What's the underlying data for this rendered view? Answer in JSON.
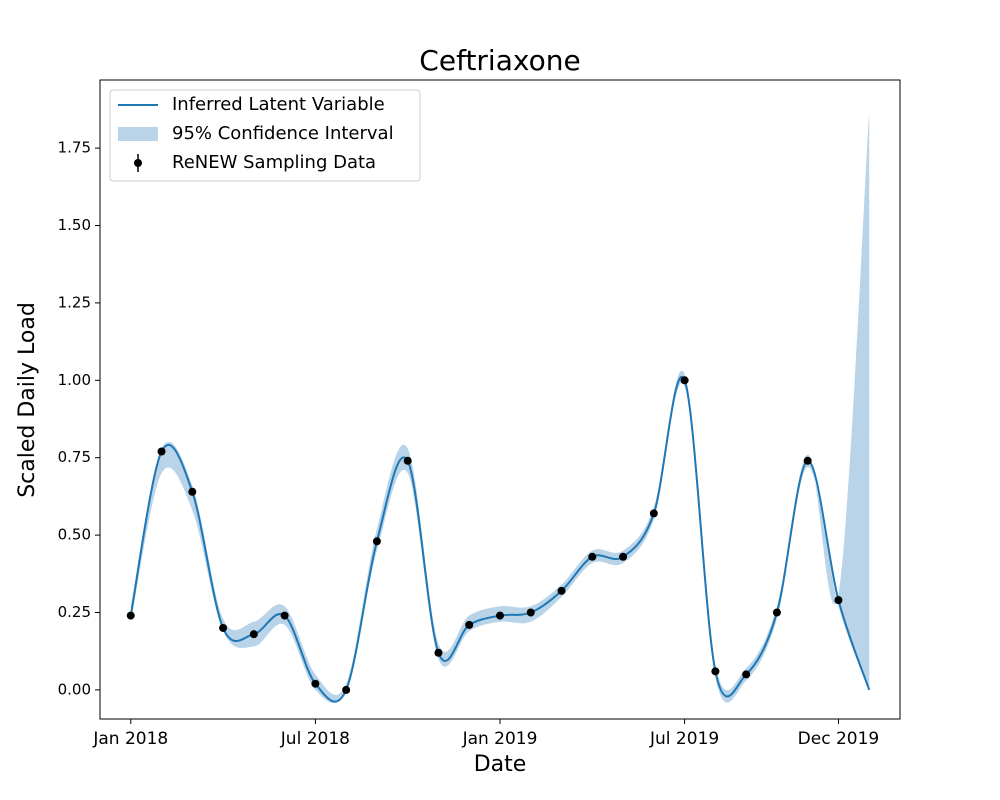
{
  "chart_data": {
    "type": "line",
    "title": "Ceftriaxone",
    "x_label": "Date",
    "y_label": "Scaled Daily Load",
    "xlim": [
      "2017-12",
      "2020-02"
    ],
    "xticks": [
      {
        "value": "2018-01",
        "label": "Jan 2018"
      },
      {
        "value": "2018-07",
        "label": "Jul 2018"
      },
      {
        "value": "2019-01",
        "label": "Jan 2019"
      },
      {
        "value": "2019-07",
        "label": "Jul 2019"
      },
      {
        "value": "2019-12",
        "label": "Dec 2019"
      }
    ],
    "ylim": [
      -0.094,
      1.97
    ],
    "yticks": [
      {
        "value": 0,
        "label": "0.00"
      },
      {
        "value": 0.25,
        "label": "0.25"
      },
      {
        "value": 0.5,
        "label": "0.50"
      },
      {
        "value": 0.75,
        "label": "0.75"
      },
      {
        "value": 1,
        "label": "1.00"
      },
      {
        "value": 1.25,
        "label": "1.25"
      },
      {
        "value": 1.5,
        "label": "1.50"
      },
      {
        "value": 1.75,
        "label": "1.75"
      }
    ],
    "legend": "upper left",
    "series": [
      {
        "name": "Inferred Latent Variable",
        "color": "#1f77b4",
        "x": [
          "2018-01",
          "2018-02",
          "2018-03",
          "2018-04",
          "2018-05",
          "2018-06",
          "2018-07",
          "2018-08",
          "2018-09",
          "2018-10",
          "2018-11",
          "2018-12",
          "2019-01",
          "2019-02",
          "2019-03",
          "2019-04",
          "2019-05",
          "2019-06",
          "2019-07",
          "2019-08",
          "2019-09",
          "2019-10",
          "2019-11",
          "2019-12",
          "2020-01"
        ],
        "values": [
          0.24,
          0.77,
          0.64,
          0.2,
          0.18,
          0.24,
          0.02,
          0,
          0.48,
          0.74,
          0.12,
          0.21,
          0.24,
          0.25,
          0.32,
          0.43,
          0.43,
          0.57,
          1.0,
          0.06,
          0.05,
          0.25,
          0.74,
          0.29,
          0
        ]
      },
      {
        "name": "95% Confidence Interval",
        "color": "#b9d4e9",
        "x": [
          "2018-01",
          "2018-02",
          "2018-03",
          "2018-04",
          "2018-05",
          "2018-06",
          "2018-07",
          "2018-08",
          "2018-09",
          "2018-10",
          "2018-11",
          "2018-12",
          "2019-01",
          "2019-02",
          "2019-03",
          "2019-04",
          "2019-05",
          "2019-06",
          "2019-07",
          "2019-08",
          "2019-09",
          "2019-10",
          "2019-11",
          "2019-12",
          "2020-01"
        ],
        "lower": [
          0.22,
          0.7,
          0.58,
          0.19,
          0.14,
          0.21,
          0,
          0,
          0.45,
          0.7,
          0.1,
          0.19,
          0.22,
          0.22,
          0.3,
          0.41,
          0.41,
          0.55,
          0.98,
          0.04,
          0.03,
          0.23,
          0.72,
          0.27,
          0
        ],
        "upper": [
          0.27,
          0.78,
          0.66,
          0.23,
          0.22,
          0.27,
          0.05,
          0.02,
          0.52,
          0.78,
          0.15,
          0.24,
          0.27,
          0.27,
          0.34,
          0.45,
          0.45,
          0.59,
          1.02,
          0.08,
          0.07,
          0.27,
          0.76,
          0.31,
          1.87
        ]
      },
      {
        "name": "ReNEW Sampling Data",
        "color": "#000000",
        "x": [
          "2018-01",
          "2018-02",
          "2018-03",
          "2018-04",
          "2018-05",
          "2018-06",
          "2018-07",
          "2018-08",
          "2018-09",
          "2018-10",
          "2018-11",
          "2018-12",
          "2019-01",
          "2019-02",
          "2019-03",
          "2019-04",
          "2019-05",
          "2019-06",
          "2019-07",
          "2019-08",
          "2019-09",
          "2019-10",
          "2019-11",
          "2019-12"
        ],
        "values": [
          0.24,
          0.77,
          0.64,
          0.2,
          0.18,
          0.24,
          0.02,
          0,
          0.48,
          0.74,
          0.12,
          0.21,
          0.24,
          0.25,
          0.32,
          0.43,
          0.43,
          0.57,
          1.0,
          0.06,
          0.05,
          0.25,
          0.74,
          0.29
        ]
      }
    ]
  }
}
